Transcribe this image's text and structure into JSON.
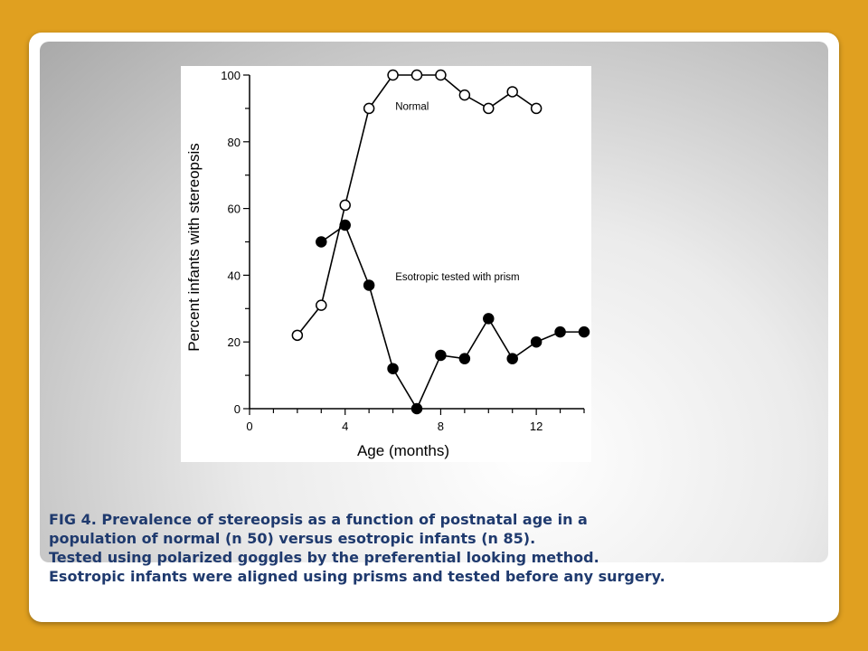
{
  "slide": {
    "caption_lines": [
      "FIG 4. Prevalence of stereopsis as a function of postnatal age in a",
      "population of normal (n  50) versus esotropic infants (n  85).",
      "Tested using polarized goggles by the preferential looking method.",
      "Esotropic infants were aligned using prisms and tested before any surgery."
    ]
  },
  "colors": {
    "background": "#e0a020",
    "caption_text": "#1f3a6e",
    "series": "#000000"
  },
  "chart_data": {
    "type": "line",
    "xlabel": "Age (months)",
    "ylabel": "Percent infants with stereopsis",
    "xlim": [
      0,
      14
    ],
    "ylim": [
      0,
      100
    ],
    "xticks": [
      0,
      4,
      8,
      12
    ],
    "yticks": [
      0,
      20,
      40,
      60,
      80,
      100
    ],
    "grid": false,
    "series": [
      {
        "name": "Normal",
        "marker": "open-circle",
        "x": [
          2,
          3,
          4,
          5,
          6,
          7,
          8,
          9,
          10,
          11,
          12
        ],
        "y": [
          22,
          31,
          61,
          90,
          100,
          100,
          100,
          94,
          90,
          95,
          90
        ]
      },
      {
        "name": "Esotropic tested with prism",
        "marker": "filled-circle",
        "x": [
          3,
          4,
          5,
          6,
          7,
          8,
          9,
          10,
          11,
          12,
          13,
          14
        ],
        "y": [
          50,
          55,
          37,
          12,
          0,
          16,
          15,
          27,
          15,
          20,
          23,
          23
        ]
      }
    ]
  }
}
